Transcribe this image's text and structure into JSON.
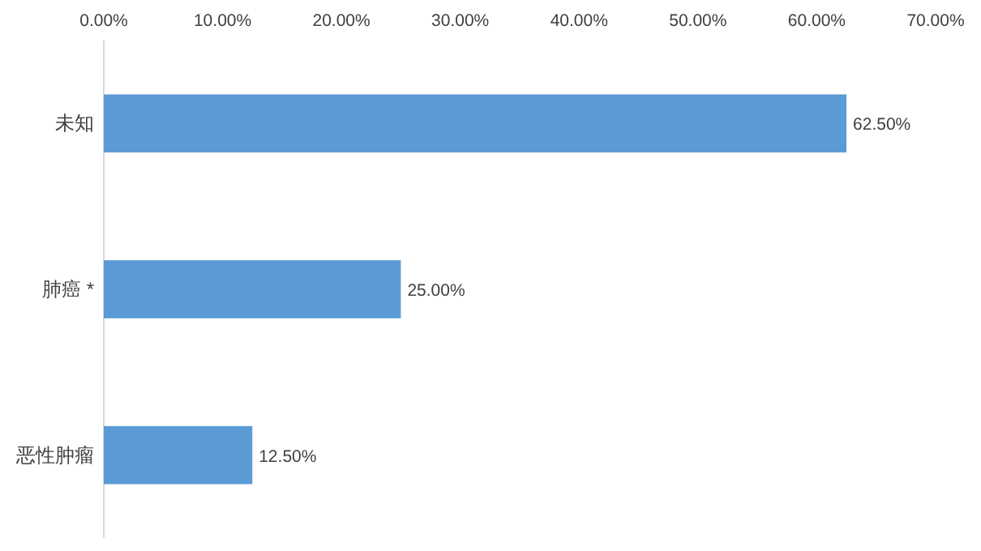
{
  "chart_data": {
    "type": "bar",
    "orientation": "horizontal",
    "categories": [
      "未知",
      "肺癌 *",
      "恶性肿瘤"
    ],
    "values": [
      62.5,
      25,
      12.5
    ],
    "color": "#5b9bd5",
    "value_labels": [
      "62.50%",
      "25.00%",
      "12.50%"
    ],
    "xlim": [
      0,
      70
    ],
    "xticks": [
      {
        "value": 0,
        "label": "0.00%"
      },
      {
        "value": 10,
        "label": "10.00%"
      },
      {
        "value": 20,
        "label": "20.00%"
      },
      {
        "value": 30,
        "label": "30.00%"
      },
      {
        "value": 40,
        "label": "40.00%"
      },
      {
        "value": 50,
        "label": "50.00%"
      },
      {
        "value": 60,
        "label": "60.00%"
      },
      {
        "value": 70,
        "label": "70.00%"
      }
    ]
  }
}
